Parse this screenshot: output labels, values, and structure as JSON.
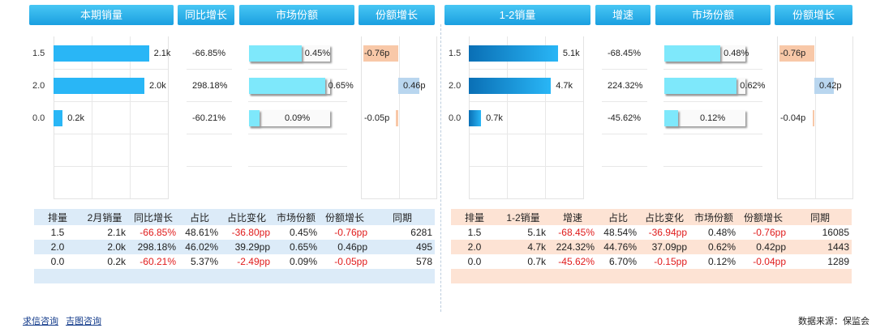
{
  "left": {
    "headers": [
      "本期销量",
      "同比增长",
      "市场份额",
      "份额增长"
    ],
    "categories": [
      "1.5",
      "2.0",
      "0.0"
    ],
    "sales": [
      2.1,
      2.0,
      0.2
    ],
    "sales_labels": [
      "2.1k",
      "2.0k",
      "0.2k"
    ],
    "yoy": [
      "-66.85%",
      "298.18%",
      "-60.21%"
    ],
    "share": [
      0.45,
      0.65,
      0.09
    ],
    "share_labels": [
      "0.45%",
      "0.65%",
      "0.09%"
    ],
    "share_growth": [
      -0.76,
      0.46,
      -0.05
    ],
    "share_growth_labels": [
      "-0.76p",
      "0.46p",
      "-0.05p"
    ],
    "table": {
      "columns": [
        "排量",
        "2月销量",
        "同比增长",
        "占比",
        "占比变化",
        "市场份额",
        "份额增长",
        "同期"
      ],
      "rows": [
        [
          "1.5",
          "2.1k",
          "-66.85%",
          "48.61%",
          "-36.80pp",
          "0.45%",
          "-0.76pp",
          "6281"
        ],
        [
          "2.0",
          "2.0k",
          "298.18%",
          "46.02%",
          "39.29pp",
          "0.65%",
          "0.46pp",
          "495"
        ],
        [
          "0.0",
          "0.2k",
          "-60.21%",
          "5.37%",
          "-2.49pp",
          "0.09%",
          "-0.05pp",
          "578"
        ]
      ]
    }
  },
  "right": {
    "headers": [
      "1-2销量",
      "增速",
      "市场份额",
      "份额增长"
    ],
    "categories": [
      "1.5",
      "2.0",
      "0.0"
    ],
    "sales": [
      5.1,
      4.7,
      0.7
    ],
    "sales_labels": [
      "5.1k",
      "4.7k",
      "0.7k"
    ],
    "yoy": [
      "-68.45%",
      "224.32%",
      "-45.62%"
    ],
    "share": [
      0.48,
      0.62,
      0.12
    ],
    "share_labels": [
      "0.48%",
      "0.62%",
      "0.12%"
    ],
    "share_growth": [
      -0.76,
      0.42,
      -0.04
    ],
    "share_growth_labels": [
      "-0.76p",
      "0.42p",
      "-0.04p"
    ],
    "table": {
      "columns": [
        "排量",
        "1-2销量",
        "增速",
        "占比",
        "占比变化",
        "市场份额",
        "份额增长",
        "同期"
      ],
      "rows": [
        [
          "1.5",
          "5.1k",
          "-68.45%",
          "48.54%",
          "-36.94pp",
          "0.48%",
          "-0.76pp",
          "16085"
        ],
        [
          "2.0",
          "4.7k",
          "224.32%",
          "44.76%",
          "37.09pp",
          "0.62%",
          "0.42pp",
          "1443"
        ],
        [
          "0.0",
          "0.7k",
          "-45.62%",
          "6.70%",
          "-0.15pp",
          "0.12%",
          "-0.04pp",
          "1289"
        ]
      ]
    }
  },
  "colors": {
    "header": "#29b6f6",
    "sales": "#29b6f6",
    "share": "#7ee8fb",
    "pos": "#b9d6ef",
    "neg": "#f8c8a8",
    "left_table_bg": "#dcebf8",
    "right_table_bg": "#fde3d4",
    "negative_text": "#e01b1b"
  },
  "footer": {
    "links": [
      "求信咨询",
      "吉图咨询"
    ],
    "source": "数据来源：保监会"
  },
  "chart_data": [
    {
      "type": "bar",
      "categories": [
        "1.5",
        "2.0",
        "0.0"
      ],
      "values": [
        2.1,
        2.0,
        0.2
      ],
      "title": "本期销量"
    },
    {
      "type": "bar",
      "categories": [
        "1.5",
        "2.0",
        "0.0"
      ],
      "values": [
        0.45,
        0.65,
        0.09
      ],
      "title": "市场份额"
    },
    {
      "type": "bar",
      "categories": [
        "1.5",
        "2.0",
        "0.0"
      ],
      "values": [
        -0.76,
        0.46,
        -0.05
      ],
      "title": "份额增长"
    },
    {
      "type": "bar",
      "categories": [
        "1.5",
        "2.0",
        "0.0"
      ],
      "values": [
        5.1,
        4.7,
        0.7
      ],
      "title": "1-2销量"
    },
    {
      "type": "bar",
      "categories": [
        "1.5",
        "2.0",
        "0.0"
      ],
      "values": [
        0.48,
        0.62,
        0.12
      ],
      "title": "市场份额"
    },
    {
      "type": "bar",
      "categories": [
        "1.5",
        "2.0",
        "0.0"
      ],
      "values": [
        -0.76,
        0.42,
        -0.04
      ],
      "title": "份额增长"
    }
  ]
}
